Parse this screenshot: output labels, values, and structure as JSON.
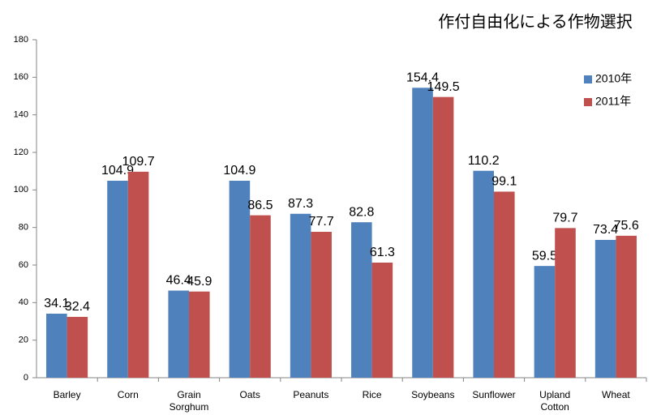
{
  "chart_data": {
    "type": "bar",
    "title": "作付自由化による作物選択",
    "categories": [
      "Barley",
      "Corn",
      "Grain Sorghum",
      "Oats",
      "Peanuts",
      "Rice",
      "Soybeans",
      "Sunflower",
      "Upland Cotton",
      "Wheat"
    ],
    "series": [
      {
        "name": "2010年",
        "color": "#4f81bd",
        "values": [
          34.1,
          104.9,
          46.4,
          104.9,
          87.3,
          82.8,
          154.4,
          110.2,
          59.5,
          73.4
        ]
      },
      {
        "name": "2011年",
        "color": "#c0504d",
        "values": [
          32.4,
          109.7,
          45.9,
          86.5,
          77.7,
          61.3,
          149.5,
          99.1,
          79.7,
          75.6
        ]
      }
    ],
    "ylim": [
      0,
      180
    ],
    "yticks": [
      0,
      20,
      40,
      60,
      80,
      100,
      120,
      140,
      160,
      180
    ],
    "grid": false,
    "legend": "top-right"
  }
}
